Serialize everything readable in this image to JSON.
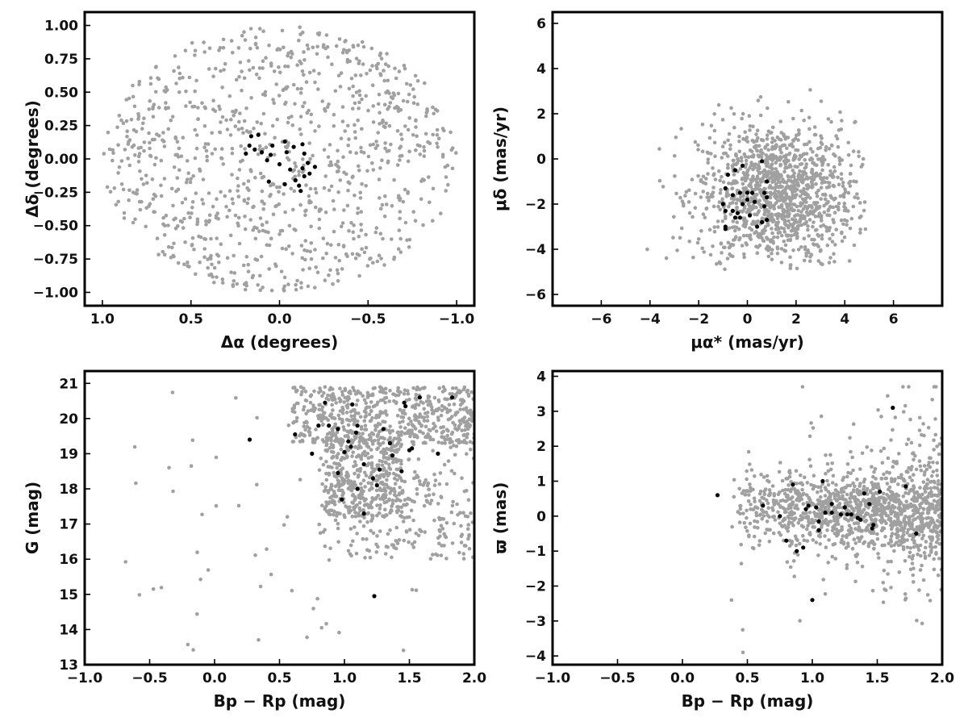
{
  "colors": {
    "field_stars": "#a0a0a0",
    "member_stars": "#000000",
    "frame": "#000000"
  },
  "chart_data": [
    {
      "id": "sky",
      "type": "scatter",
      "title": "",
      "xlabel": "Δα (degrees)",
      "ylabel": "Δδ (degrees)",
      "xlim": [
        1.1,
        -1.1
      ],
      "ylim": [
        -1.1,
        1.1
      ],
      "xticks": [
        1.0,
        0.5,
        0.0,
        -0.5,
        -1.0
      ],
      "xticklabels": [
        "1.0",
        "0.5",
        "0.0",
        "−0.5",
        "−1.0"
      ],
      "yticks": [
        1.0,
        0.75,
        0.5,
        0.25,
        0.0,
        -0.25,
        -0.5,
        -0.75,
        -1.0
      ],
      "yticklabels": [
        "1.00",
        "0.75",
        "0.50",
        "0.25",
        "0.00",
        "−0.25",
        "−0.50",
        "−0.75",
        "−1.00"
      ],
      "grid": false,
      "series": [
        {
          "role": "field",
          "sample": {
            "kind": "disk",
            "n": 1000,
            "cx": 0.0,
            "cy": 0.0,
            "rx": 1.0,
            "ry": 1.0
          }
        },
        {
          "role": "member",
          "points": [
            [
              0.16,
              0.17
            ],
            [
              0.12,
              0.18
            ],
            [
              0.17,
              0.1
            ],
            [
              0.14,
              0.07
            ],
            [
              0.1,
              0.05
            ],
            [
              0.19,
              0.04
            ],
            [
              0.05,
              0.03
            ],
            [
              0.07,
              -0.01
            ],
            [
              0.04,
              0.1
            ],
            [
              -0.03,
              0.13
            ],
            [
              -0.04,
              0.05
            ],
            [
              -0.08,
              0.09
            ],
            [
              -0.13,
              0.11
            ],
            [
              -0.14,
              0.04
            ],
            [
              -0.16,
              -0.03
            ],
            [
              -0.2,
              -0.06
            ],
            [
              -0.13,
              -0.07
            ],
            [
              -0.17,
              -0.11
            ],
            [
              -0.14,
              -0.13
            ],
            [
              -0.09,
              -0.16
            ],
            [
              -0.11,
              -0.2
            ],
            [
              -0.03,
              -0.19
            ],
            [
              0.06,
              -0.17
            ],
            [
              -0.12,
              -0.24
            ],
            [
              0.0,
              -0.04
            ],
            [
              -0.06,
              -0.08
            ]
          ]
        }
      ]
    },
    {
      "id": "proper-motion",
      "type": "scatter",
      "title": "",
      "xlabel": "μα* (mas/yr)",
      "ylabel": "μδ (mas/yr)",
      "xlim": [
        -8,
        8
      ],
      "ylim": [
        -6.5,
        6.5
      ],
      "xticks": [
        -6,
        -4,
        -2,
        0,
        2,
        4,
        6
      ],
      "xticklabels": [
        "−6",
        "−4",
        "−2",
        "0",
        "2",
        "4",
        "6"
      ],
      "yticks": [
        -6,
        -4,
        -2,
        0,
        2,
        4,
        6
      ],
      "yticklabels": [
        "−6",
        "−4",
        "−2",
        "0",
        "2",
        "4",
        "6"
      ],
      "grid": false,
      "series": [
        {
          "role": "field",
          "sample": {
            "kind": "gauss",
            "n": 1250,
            "mx": 1.2,
            "my": -1.6,
            "sx": 1.6,
            "sy": 1.6,
            "xmin": -4.6,
            "xmax": 4.9,
            "ymin": -4.9,
            "ymax": 4.8
          }
        },
        {
          "role": "member",
          "points": [
            [
              -0.8,
              -0.7
            ],
            [
              -0.5,
              -0.5
            ],
            [
              -0.2,
              -0.3
            ],
            [
              0.6,
              -0.1
            ],
            [
              0.8,
              -1.0
            ],
            [
              -0.9,
              -1.3
            ],
            [
              -0.3,
              -1.5
            ],
            [
              0.0,
              -1.5
            ],
            [
              0.2,
              -1.5
            ],
            [
              -0.6,
              -1.6
            ],
            [
              0.3,
              -1.9
            ],
            [
              0.0,
              -1.8
            ],
            [
              0.7,
              -1.5
            ],
            [
              0.8,
              -1.7
            ],
            [
              -0.9,
              -2.3
            ],
            [
              -0.6,
              -2.3
            ],
            [
              -0.4,
              -2.4
            ],
            [
              -0.3,
              -2.6
            ],
            [
              -0.5,
              -2.6
            ],
            [
              0.1,
              -2.5
            ],
            [
              0.6,
              -2.8
            ],
            [
              0.8,
              -2.7
            ],
            [
              -0.9,
              -3.0
            ],
            [
              -0.9,
              -3.1
            ],
            [
              0.4,
              -3.0
            ],
            [
              0.7,
              -2.1
            ],
            [
              -0.2,
              -2.0
            ],
            [
              -1.0,
              -2.0
            ]
          ]
        }
      ]
    },
    {
      "id": "cmd",
      "type": "scatter",
      "title": "",
      "xlabel": "Bp − Rp (mag)",
      "ylabel": "G (mag)",
      "xlim": [
        -1.0,
        2.0
      ],
      "ylim": [
        13,
        21.35
      ],
      "xticks": [
        -1.0,
        -0.5,
        0.0,
        0.5,
        1.0,
        1.5,
        2.0
      ],
      "xticklabels": [
        "−1.0",
        "−0.5",
        "0.0",
        "0.5",
        "1.0",
        "1.5",
        "2.0"
      ],
      "yticks": [
        13,
        14,
        15,
        16,
        17,
        18,
        19,
        20,
        21
      ],
      "yticklabels": [
        "13",
        "14",
        "15",
        "16",
        "17",
        "18",
        "19",
        "20",
        "21"
      ],
      "grid": false,
      "series": [
        {
          "role": "field",
          "sample": {
            "kind": "cmd",
            "n": 1300
          }
        },
        {
          "role": "member",
          "points": [
            [
              0.27,
              19.4
            ],
            [
              0.62,
              19.55
            ],
            [
              0.75,
              19.0
            ],
            [
              0.8,
              19.8
            ],
            [
              0.85,
              20.45
            ],
            [
              0.88,
              19.8
            ],
            [
              0.95,
              19.7
            ],
            [
              1.0,
              19.05
            ],
            [
              1.03,
              19.35
            ],
            [
              1.05,
              19.2
            ],
            [
              1.06,
              20.4
            ],
            [
              1.09,
              19.6
            ],
            [
              1.1,
              19.8
            ],
            [
              0.95,
              18.45
            ],
            [
              0.98,
              17.7
            ],
            [
              1.1,
              18.0
            ],
            [
              1.15,
              18.7
            ],
            [
              1.15,
              17.3
            ],
            [
              1.22,
              18.3
            ],
            [
              1.25,
              18.1
            ],
            [
              1.27,
              18.55
            ],
            [
              1.3,
              19.7
            ],
            [
              1.35,
              19.3
            ],
            [
              1.37,
              18.95
            ],
            [
              1.44,
              18.5
            ],
            [
              1.46,
              20.45
            ],
            [
              1.47,
              20.35
            ],
            [
              1.5,
              19.1
            ],
            [
              1.52,
              19.15
            ],
            [
              1.58,
              20.6
            ],
            [
              1.72,
              19.0
            ],
            [
              1.83,
              20.6
            ],
            [
              1.23,
              14.95
            ]
          ]
        }
      ]
    },
    {
      "id": "parallax",
      "type": "scatter",
      "title": "",
      "xlabel": "Bp − Rp (mag)",
      "ylabel": "ϖ (mas)",
      "xlim": [
        -1.0,
        2.0
      ],
      "ylim": [
        -4.25,
        4.15
      ],
      "xticks": [
        -1.0,
        -0.5,
        0.0,
        0.5,
        1.0,
        1.5,
        2.0
      ],
      "xticklabels": [
        "−1.0",
        "−0.5",
        "0.0",
        "0.5",
        "1.0",
        "1.5",
        "2.0"
      ],
      "yticks": [
        -4,
        -3,
        -2,
        -1,
        0,
        1,
        2,
        3,
        4
      ],
      "yticklabels": [
        "−4",
        "−3",
        "−2",
        "−1",
        "0",
        "1",
        "2",
        "3",
        "4"
      ],
      "grid": false,
      "series": [
        {
          "role": "field",
          "sample": {
            "kind": "plx",
            "n": 1300
          }
        },
        {
          "role": "member",
          "points": [
            [
              0.27,
              0.6
            ],
            [
              0.62,
              0.3
            ],
            [
              0.75,
              0.0
            ],
            [
              0.8,
              -0.7
            ],
            [
              0.85,
              0.9
            ],
            [
              0.88,
              -1.0
            ],
            [
              0.95,
              0.2
            ],
            [
              0.93,
              -0.9
            ],
            [
              0.97,
              0.3
            ],
            [
              1.0,
              -2.4
            ],
            [
              1.03,
              0.25
            ],
            [
              1.05,
              -0.15
            ],
            [
              1.05,
              -0.4
            ],
            [
              1.08,
              1.0
            ],
            [
              1.1,
              0.1
            ],
            [
              1.15,
              0.35
            ],
            [
              1.15,
              0.1
            ],
            [
              1.22,
              0.05
            ],
            [
              1.25,
              0.25
            ],
            [
              1.27,
              0.05
            ],
            [
              1.3,
              0.05
            ],
            [
              1.35,
              -0.05
            ],
            [
              1.37,
              -0.1
            ],
            [
              1.4,
              0.65
            ],
            [
              1.44,
              0.35
            ],
            [
              1.46,
              -0.35
            ],
            [
              1.47,
              -0.25
            ],
            [
              1.52,
              0.7
            ],
            [
              1.62,
              3.1
            ],
            [
              1.72,
              0.85
            ],
            [
              1.8,
              -0.5
            ]
          ]
        }
      ]
    }
  ]
}
